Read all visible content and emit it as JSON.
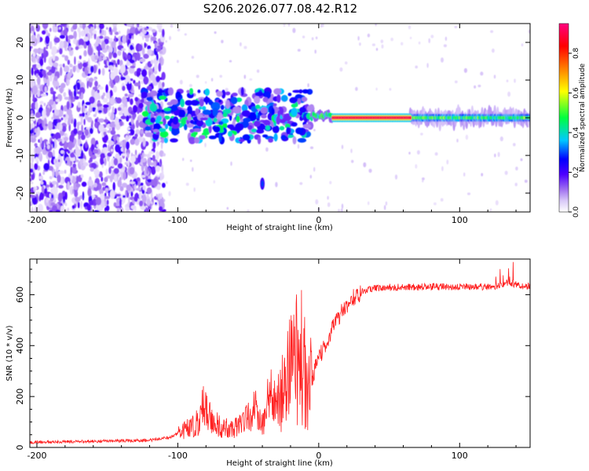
{
  "title": "S206.2026.077.08.42.R12",
  "chart_data": [
    {
      "type": "heatmap",
      "title": "S206.2026.077.08.42.R12",
      "xlabel": "Height of straight line (km)",
      "ylabel": "Frequency (Hz)",
      "xlim": [
        -205,
        150
      ],
      "ylim": [
        -25,
        25
      ],
      "xticks": [
        -200,
        -100,
        0,
        100
      ],
      "yticks": [
        -20,
        -10,
        0,
        10,
        20
      ],
      "colorbar": {
        "label": "Normalized spectral amplitude",
        "range": [
          0,
          0.95
        ],
        "ticks": [
          "0.0",
          "0.2",
          "0.4",
          "0.6",
          "0.8"
        ],
        "colormap": [
          "#ffffff",
          "#a070f0",
          "#5000ff",
          "#0000ff",
          "#00d0ff",
          "#00ff60",
          "#ffff00",
          "#ff8000",
          "#ff0000",
          "#ff0080"
        ]
      },
      "features": [
        {
          "region": "noise",
          "x_range": [
            -205,
            -110
          ],
          "y_range": [
            -25,
            25
          ],
          "amplitude": 0.1
        },
        {
          "region": "scattered_returns",
          "x_range": [
            -125,
            -5
          ],
          "y_range": [
            -6,
            7
          ],
          "amplitude": 0.2
        },
        {
          "region": "isolated_blob",
          "x": -40,
          "y": -17.5,
          "amplitude": 0.15
        },
        {
          "region": "signal_band",
          "x_range": [
            -5,
            10
          ],
          "y": 0.5,
          "amplitude": 0.35
        },
        {
          "region": "strong_carrier",
          "x_range": [
            10,
            65
          ],
          "y": 0,
          "amplitude": 0.9
        },
        {
          "region": "decaying_carrier",
          "x_range": [
            65,
            150
          ],
          "y": 0,
          "amplitude": 0.45
        }
      ]
    },
    {
      "type": "line",
      "xlabel": "Height of straight line (km)",
      "ylabel": "SNR (10 * v/v)",
      "xlim": [
        -205,
        150
      ],
      "ylim": [
        0,
        740
      ],
      "xticks": [
        -200,
        -100,
        0,
        100
      ],
      "yticks": [
        0,
        200,
        400,
        600
      ],
      "color": "#ff2020",
      "x": [
        -205,
        -180,
        -150,
        -120,
        -105,
        -95,
        -85,
        -82,
        -78,
        -70,
        -60,
        -52,
        -45,
        -40,
        -35,
        -30,
        -25,
        -20,
        -18,
        -16,
        -14,
        -12,
        -10,
        -8,
        -5,
        -2,
        0,
        3,
        6,
        10,
        15,
        20,
        25,
        30,
        35,
        40,
        50,
        60,
        70,
        80,
        90,
        100,
        110,
        120,
        130,
        135,
        140,
        145,
        150
      ],
      "y": [
        20,
        22,
        25,
        28,
        40,
        70,
        100,
        160,
        120,
        80,
        70,
        110,
        150,
        80,
        210,
        160,
        220,
        320,
        250,
        380,
        300,
        360,
        280,
        200,
        260,
        320,
        340,
        390,
        420,
        470,
        520,
        560,
        590,
        610,
        620,
        625,
        628,
        630,
        630,
        632,
        630,
        632,
        630,
        632,
        635,
        650,
        640,
        630,
        635
      ]
    }
  ]
}
